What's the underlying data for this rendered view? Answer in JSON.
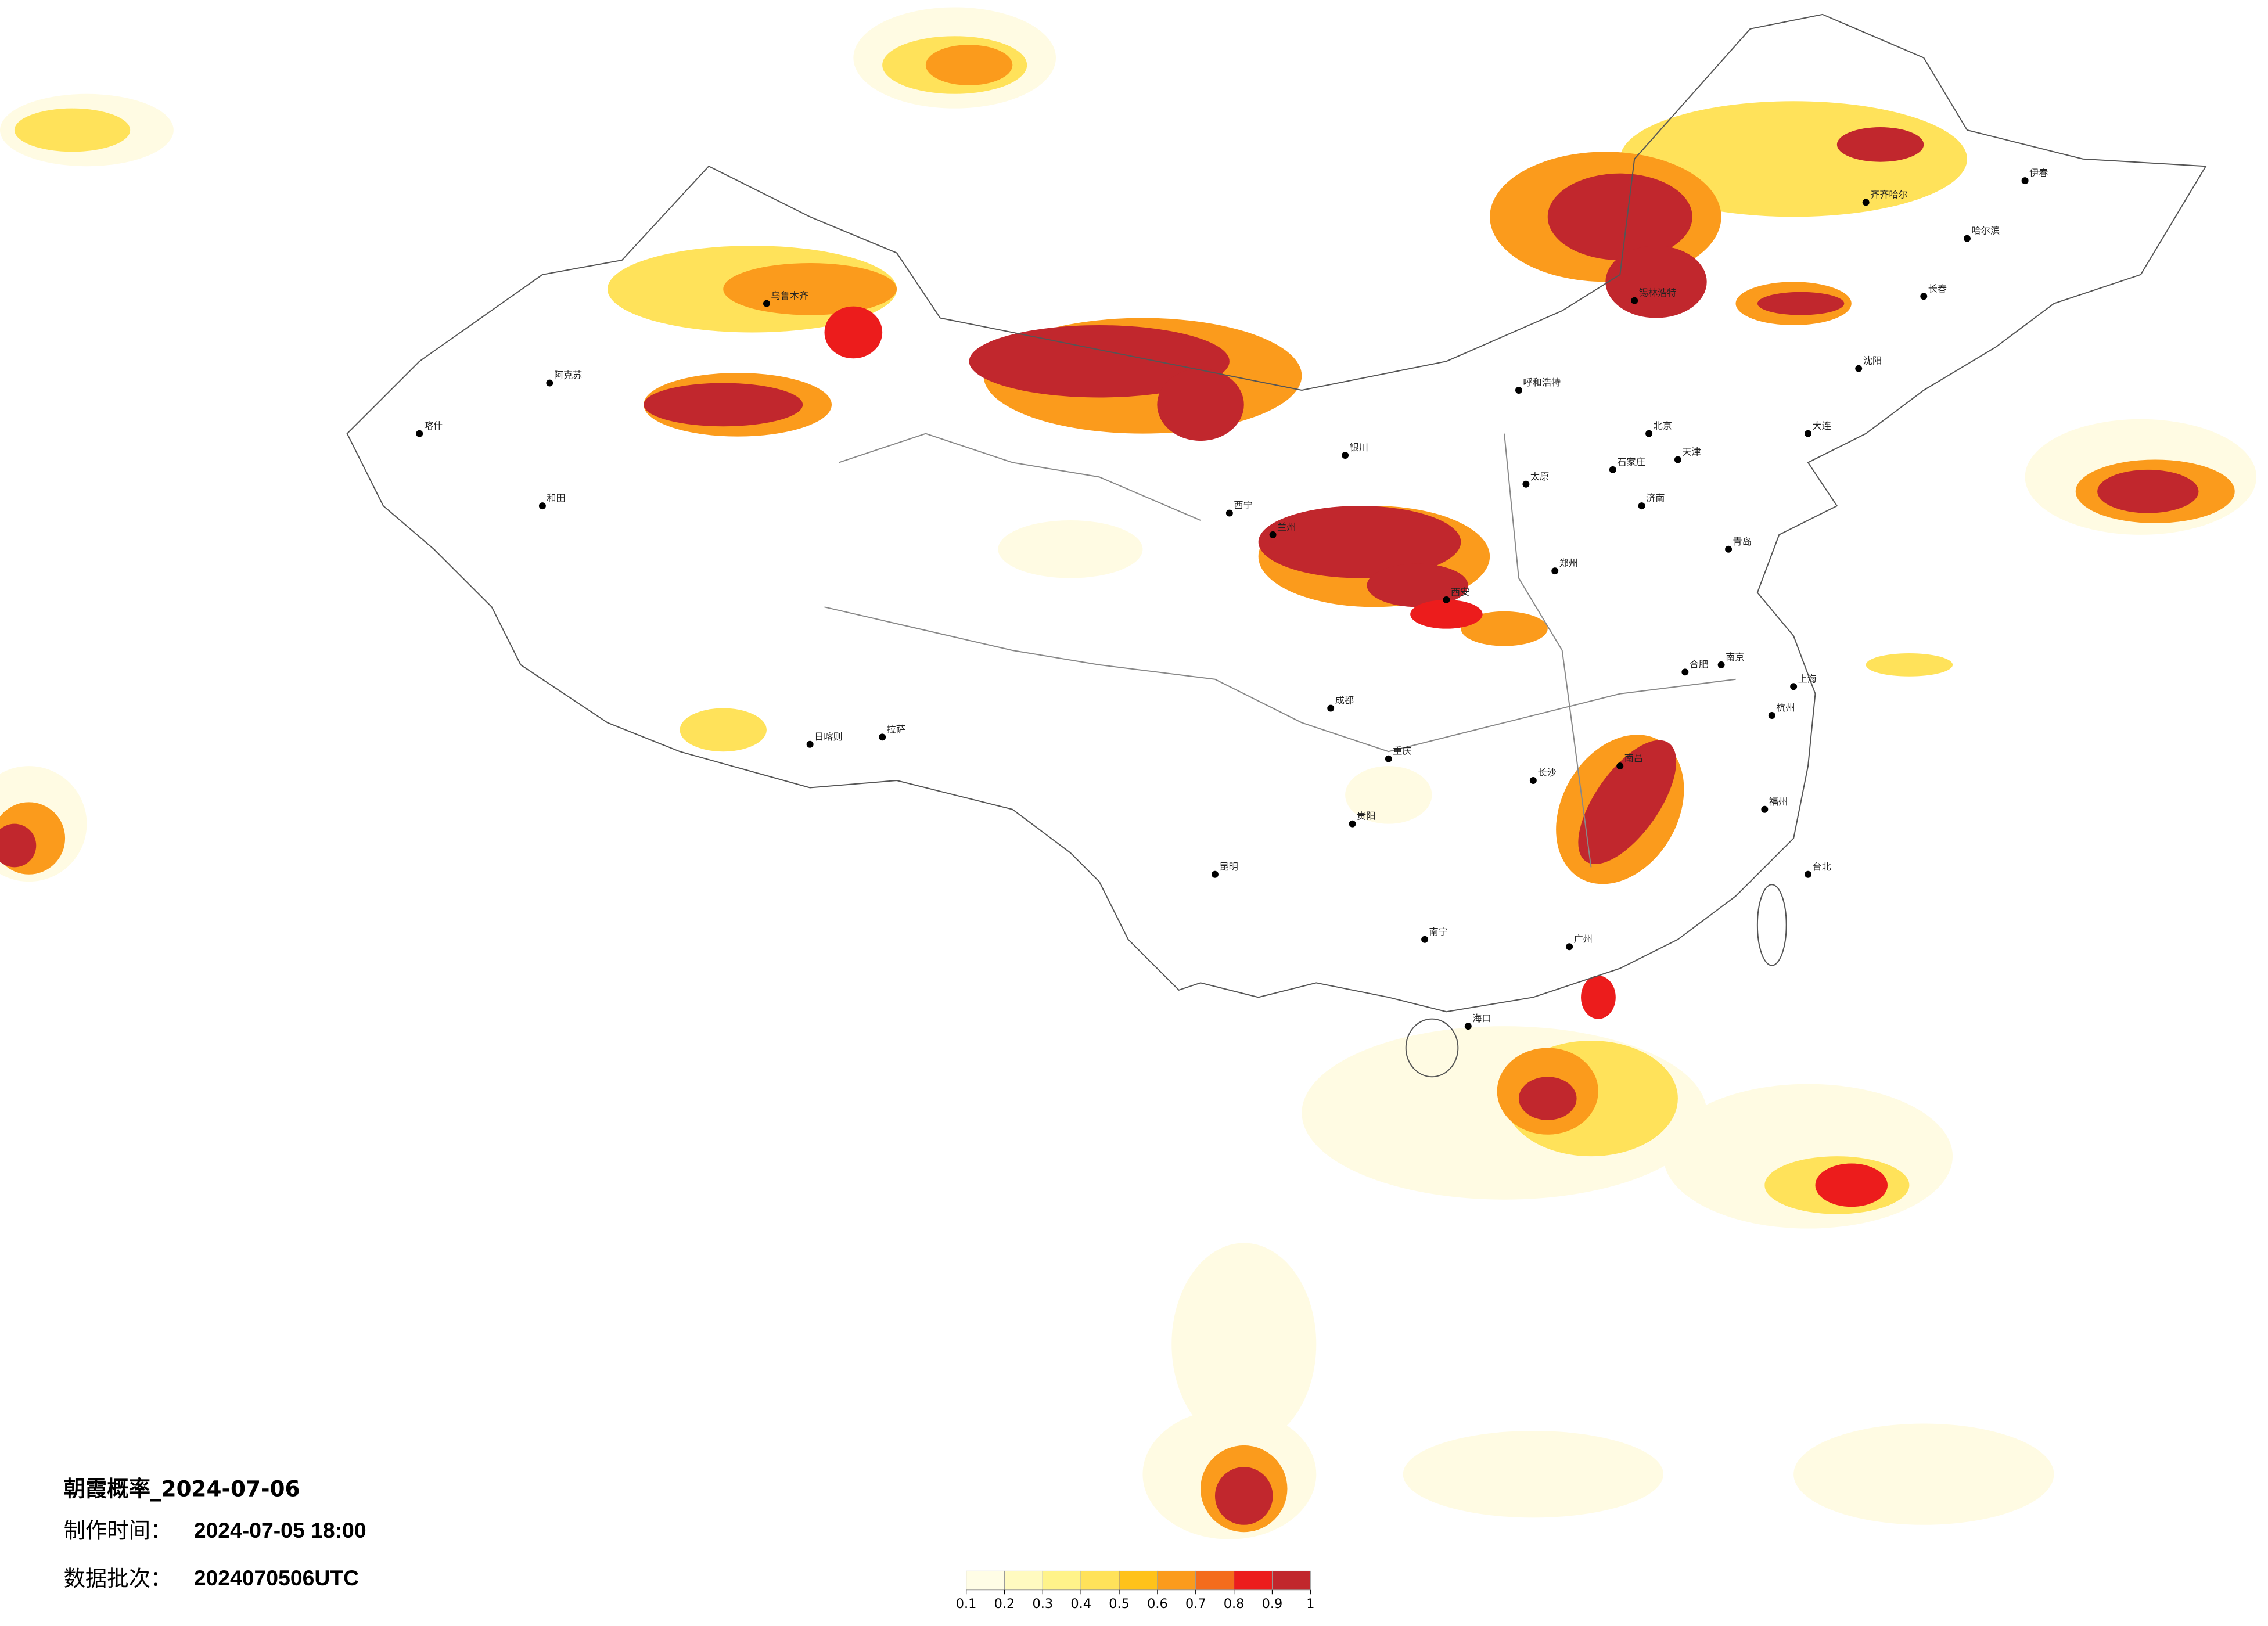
{
  "map": {
    "title": "朝霞概率_2024-07-06",
    "made_label": "制作时间：",
    "made_time": "2024-07-05 18:00",
    "batch_label": "数据批次：",
    "batch": "2024070506UTC",
    "colorbar": {
      "ticks": [
        0.1,
        0.2,
        0.3,
        0.4,
        0.5,
        0.6,
        0.7,
        0.8,
        0.9,
        1
      ],
      "colors": [
        "#fffde6",
        "#fffac0",
        "#fff38a",
        "#ffe25a",
        "#ffc21a",
        "#fb9b1c",
        "#f46c1c",
        "#ec1c1c",
        "#c1272d"
      ]
    },
    "cities": [
      {
        "name": "北京"
      },
      {
        "name": "天津"
      },
      {
        "name": "上海"
      },
      {
        "name": "广州"
      },
      {
        "name": "成都"
      },
      {
        "name": "重庆"
      },
      {
        "name": "西安"
      },
      {
        "name": "拉萨"
      },
      {
        "name": "乌鲁木齐"
      },
      {
        "name": "哈尔滨"
      },
      {
        "name": "长春"
      },
      {
        "name": "沈阳"
      },
      {
        "name": "兰州"
      },
      {
        "name": "昆明"
      },
      {
        "name": "贵阳"
      },
      {
        "name": "南宁"
      },
      {
        "name": "海口"
      },
      {
        "name": "福州"
      },
      {
        "name": "长沙"
      },
      {
        "name": "南昌"
      },
      {
        "name": "杭州"
      },
      {
        "name": "南京"
      },
      {
        "name": "合肥"
      },
      {
        "name": "郑州"
      },
      {
        "name": "济南"
      },
      {
        "name": "太原"
      },
      {
        "name": "石家庄"
      },
      {
        "name": "呼和浩特"
      },
      {
        "name": "银川"
      },
      {
        "name": "西宁"
      },
      {
        "name": "喀什"
      },
      {
        "name": "和田"
      },
      {
        "name": "台北"
      },
      {
        "name": "伊春"
      },
      {
        "name": "锡林浩特"
      },
      {
        "name": "阿克苏"
      },
      {
        "name": "日喀则"
      },
      {
        "name": "齐齐哈尔"
      },
      {
        "name": "大连"
      },
      {
        "name": "青岛"
      }
    ]
  }
}
